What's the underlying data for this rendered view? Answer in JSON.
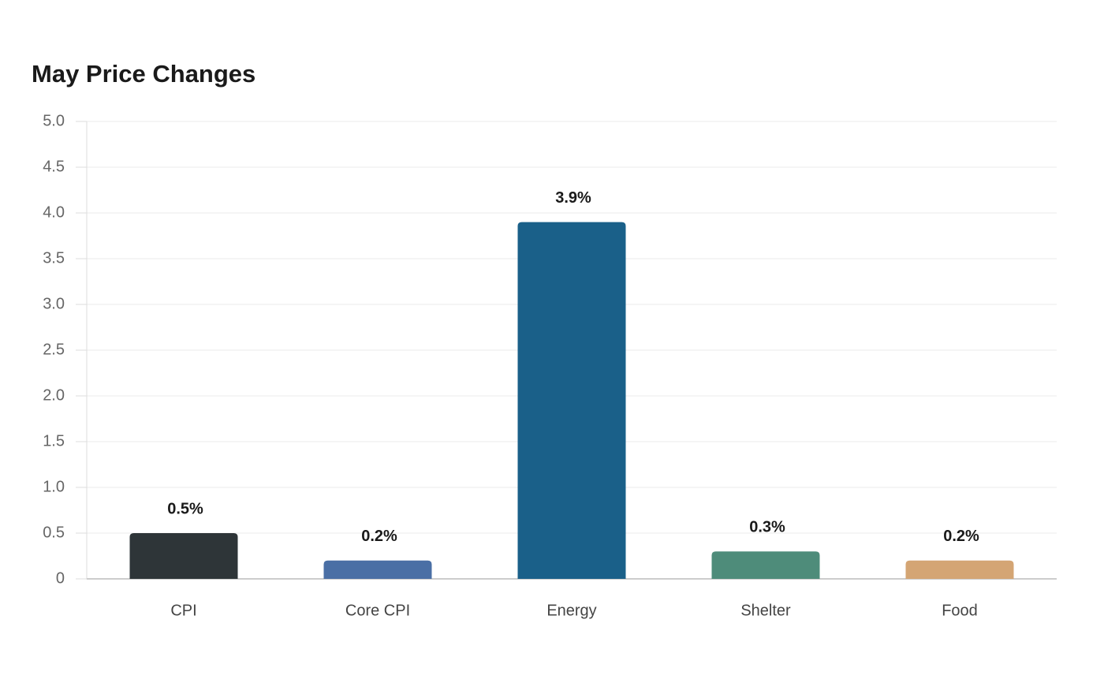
{
  "chart_data": {
    "type": "bar",
    "title": "May Price Changes",
    "categories": [
      "CPI",
      "Core CPI",
      "Energy",
      "Shelter",
      "Food"
    ],
    "values": [
      0.5,
      0.2,
      3.9,
      0.3,
      0.2
    ],
    "value_labels": [
      "0.5%",
      "0.2%",
      "3.9%",
      "0.3%",
      "0.2%"
    ],
    "colors": [
      "#2e3538",
      "#4a6fa5",
      "#1a6089",
      "#4e8c7a",
      "#d4a574"
    ],
    "ylim": [
      0,
      5
    ],
    "yticks": [
      0,
      0.5,
      {
        "value": 1,
        "label": "1.0"
      },
      1.5,
      {
        "value": 2,
        "label": "2.0"
      },
      2.5,
      {
        "value": 3,
        "label": "3.0"
      },
      3.5,
      {
        "value": 4,
        "label": "4.0"
      },
      4.5,
      {
        "value": 5,
        "label": "5.0"
      }
    ],
    "grid": true
  }
}
